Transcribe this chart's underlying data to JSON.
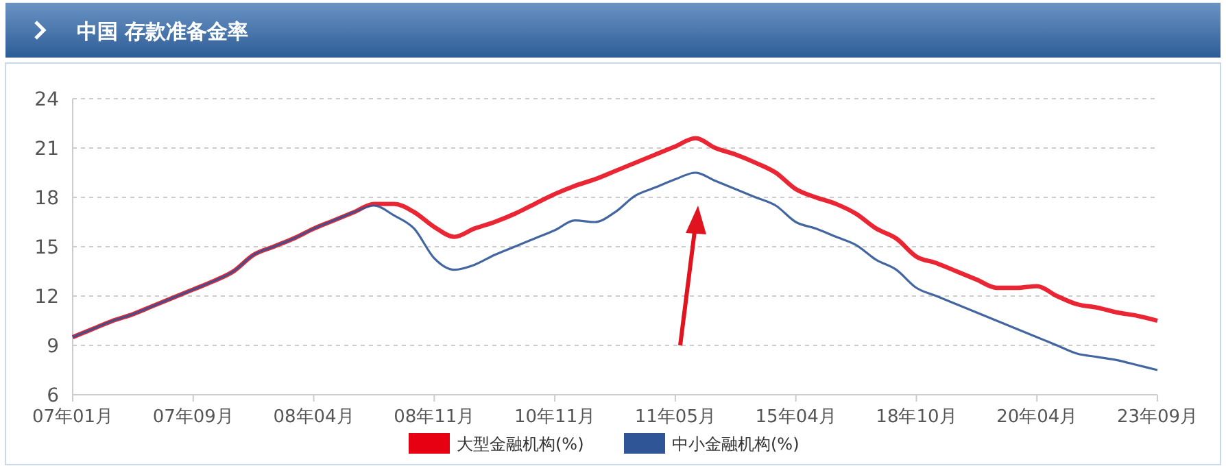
{
  "chart_data": {
    "type": "line",
    "title": "中国 存款准备金率",
    "categories": [
      "07年01月",
      null,
      null,
      null,
      null,
      null,
      "07年09月",
      null,
      null,
      null,
      null,
      null,
      "08年04月",
      null,
      null,
      null,
      null,
      null,
      "08年11月",
      null,
      null,
      null,
      null,
      null,
      "10年11月",
      null,
      null,
      null,
      null,
      null,
      "11年05月",
      null,
      null,
      null,
      null,
      null,
      "15年04月",
      null,
      null,
      null,
      null,
      null,
      "18年10月",
      null,
      null,
      null,
      null,
      null,
      "20年04月",
      null,
      null,
      null,
      null,
      null,
      "23年09月"
    ],
    "series": [
      {
        "name": "大型金融机构(%)",
        "color": "#e60012",
        "values": [
          9.5,
          10.0,
          10.5,
          10.9,
          11.4,
          11.9,
          12.4,
          12.9,
          13.5,
          14.5,
          15.0,
          15.5,
          16.1,
          16.6,
          17.1,
          17.6,
          17.6,
          17.1,
          16.2,
          15.6,
          16.1,
          16.5,
          17.0,
          17.6,
          18.2,
          18.7,
          19.1,
          19.6,
          20.1,
          20.6,
          21.1,
          21.6,
          21.0,
          20.6,
          20.1,
          19.5,
          18.5,
          18.0,
          17.6,
          17.0,
          16.1,
          15.5,
          14.4,
          14.0,
          13.5,
          13.0,
          12.5,
          12.5,
          12.6,
          12.0,
          11.5,
          11.3,
          11.0,
          10.8,
          10.5
        ]
      },
      {
        "name": "中小金融机构(%)",
        "color": "#2f5597",
        "values": [
          9.5,
          10.0,
          10.5,
          10.9,
          11.4,
          11.9,
          12.4,
          12.9,
          13.5,
          14.5,
          15.0,
          15.5,
          16.1,
          16.6,
          17.1,
          17.5,
          16.9,
          16.1,
          14.3,
          13.6,
          13.9,
          14.5,
          15.0,
          15.5,
          16.0,
          16.6,
          16.5,
          17.1,
          18.1,
          18.6,
          19.1,
          19.5,
          19.0,
          18.5,
          18.0,
          17.5,
          16.5,
          16.1,
          15.6,
          15.1,
          14.2,
          13.6,
          12.5,
          12.0,
          11.5,
          11.0,
          10.5,
          10.0,
          9.5,
          9.0,
          8.5,
          8.3,
          8.1,
          7.8,
          7.5
        ]
      }
    ],
    "ylim": [
      6,
      24
    ],
    "yticks": [
      6,
      9,
      12,
      15,
      18,
      21,
      24
    ],
    "grid": "y",
    "legend": "bottom",
    "marker": "none",
    "line_style": "solid"
  }
}
